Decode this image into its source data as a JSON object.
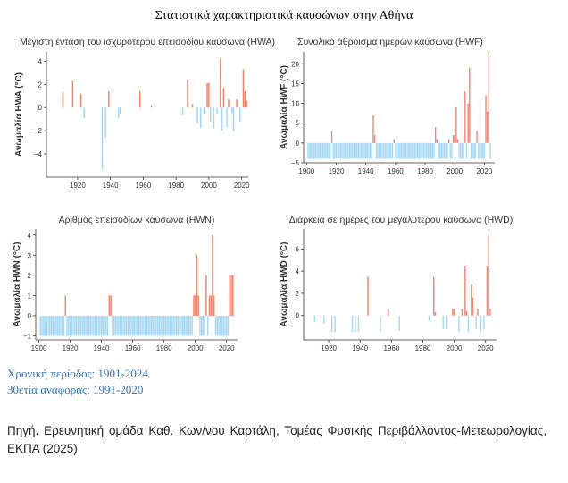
{
  "title": "Στατιστικά χαρακτηριστικά καυσώνων στην Αθήνα",
  "period_label": "Χρονική περίοδος: 1901-2024",
  "reference_label": "30ετία αναφοράς: 1991-2020",
  "source_label": "Πηγή. Ερευνητική ομάδα Καθ. Κων/νου Καρτάλη, Τομέας Φυσικής Περιβάλλοντος-Μετεωρολογίας, ΕΚΠΑ (2025)",
  "colors": {
    "positive": "#f2826c",
    "negative": "#a6d8f2"
  },
  "chart_data": [
    {
      "type": "bar",
      "id": "hwa",
      "title": "Μέγιστη ένταση του ισχυρότερου επεισοδίου καύσωνα (HWA)",
      "ylabel": "Ανωμαλία HWA (°C)",
      "xlim": [
        1901,
        2024
      ],
      "ylim": [
        -6,
        4.8
      ],
      "xticks": [
        1920,
        1940,
        1960,
        1980,
        2000,
        2020
      ],
      "yticks": [
        4,
        2,
        0,
        -2,
        -4
      ],
      "ytick_labels": [
        "4",
        "2",
        "0",
        "−2",
        "−4"
      ],
      "x": [
        1911,
        1917,
        1922,
        1924,
        1935,
        1937,
        1939,
        1945,
        1946,
        1958,
        1965,
        1984,
        1987,
        1990,
        1993,
        1995,
        1997,
        1999,
        2000,
        2001,
        2003,
        2005,
        2007,
        2008,
        2009,
        2011,
        2012,
        2014,
        2015,
        2017,
        2019,
        2021,
        2022,
        2023
      ],
      "values": [
        1.3,
        2.3,
        1.2,
        -0.9,
        -5.3,
        -2.6,
        1.4,
        -0.9,
        -0.6,
        1.4,
        0.2,
        -0.7,
        2.4,
        0.3,
        -1.4,
        -1.8,
        -0.6,
        2.1,
        2.1,
        -1.2,
        -1.8,
        -0.6,
        4.2,
        -2.0,
        1.7,
        -1.7,
        0.7,
        -0.5,
        -2.1,
        0.7,
        -1.2,
        3.3,
        1.4,
        0.6
      ]
    },
    {
      "type": "bar",
      "id": "hwf",
      "title": "Συνολικό άθροισμα ημερών καύσωνα (HWF)",
      "ylabel": "Ανωμαλία HWF (°C)",
      "xlim": [
        1898,
        2027
      ],
      "ylim": [
        -5,
        23
      ],
      "xticks": [
        1900,
        1920,
        1940,
        1960,
        1980,
        2000,
        2020
      ],
      "yticks": [
        20,
        15,
        10,
        5,
        0,
        -5
      ],
      "ytick_labels": [
        "20",
        "15",
        "10",
        "5",
        "0",
        "−5"
      ],
      "x": [
        1901,
        1902,
        1903,
        1904,
        1905,
        1906,
        1907,
        1908,
        1909,
        1910,
        1911,
        1912,
        1913,
        1914,
        1915,
        1916,
        1917,
        1918,
        1919,
        1920,
        1921,
        1922,
        1923,
        1924,
        1925,
        1926,
        1927,
        1928,
        1929,
        1930,
        1931,
        1932,
        1933,
        1934,
        1935,
        1936,
        1937,
        1938,
        1939,
        1940,
        1941,
        1942,
        1943,
        1944,
        1945,
        1946,
        1947,
        1948,
        1949,
        1950,
        1951,
        1952,
        1953,
        1954,
        1955,
        1956,
        1957,
        1958,
        1959,
        1960,
        1961,
        1962,
        1963,
        1964,
        1965,
        1966,
        1967,
        1968,
        1969,
        1970,
        1971,
        1972,
        1973,
        1974,
        1975,
        1976,
        1977,
        1978,
        1979,
        1980,
        1981,
        1982,
        1983,
        1984,
        1985,
        1986,
        1987,
        1988,
        1989,
        1990,
        1991,
        1992,
        1993,
        1994,
        1995,
        1996,
        1997,
        1998,
        1999,
        2000,
        2001,
        2002,
        2003,
        2004,
        2005,
        2006,
        2007,
        2008,
        2009,
        2010,
        2011,
        2012,
        2013,
        2014,
        2015,
        2016,
        2017,
        2018,
        2019,
        2020,
        2021,
        2022,
        2023,
        2024
      ],
      "values": [
        -4,
        -4,
        -4,
        -4,
        -4,
        -4,
        -4,
        -4,
        -4,
        -4,
        -4,
        -4,
        -4,
        -4,
        -4,
        -4,
        3,
        -4,
        -4,
        -4,
        -4,
        -4,
        -4,
        -4,
        -4,
        -4,
        -4,
        -4,
        -4,
        -4,
        -4,
        -4,
        -4,
        -4,
        -4,
        -4,
        -4,
        -4,
        -4,
        -4,
        -4,
        -4,
        -4,
        -4,
        7,
        2,
        -4,
        -4,
        -4,
        -4,
        -4,
        -4,
        -4,
        -4,
        -4,
        -4,
        -4,
        -4,
        1,
        -4,
        -4,
        -4,
        -4,
        -4,
        -4,
        -4,
        -4,
        -4,
        -4,
        -4,
        -4,
        -4,
        -4,
        -4,
        -4,
        -4,
        -4,
        -4,
        -4,
        -4,
        -4,
        -4,
        -4,
        -4,
        -4,
        -4,
        4,
        1,
        -4,
        -4,
        -4,
        -4,
        -4,
        -4,
        -4,
        1,
        -4,
        -4,
        2,
        2,
        9,
        1,
        -4,
        -4,
        -4,
        -4,
        13,
        -4,
        10,
        19,
        -4,
        -4,
        -4,
        -4,
        3,
        -4,
        -4,
        -4,
        -4,
        -4,
        12,
        8,
        23,
        -4
      ]
    },
    {
      "type": "bar",
      "id": "hwn",
      "title": "Αριθμός επεισοδίων καύσωνα (HWN)",
      "ylabel": "Ανωμαλία HWN (°C)",
      "xlim": [
        1898,
        2027
      ],
      "ylim": [
        -1.2,
        4.3
      ],
      "xticks": [
        1900,
        1920,
        1940,
        1960,
        1980,
        2000,
        2020
      ],
      "yticks": [
        4,
        3,
        2,
        1,
        0,
        -1
      ],
      "ytick_labels": [
        "4",
        "3",
        "2",
        "1",
        "0",
        "−1"
      ],
      "x": [
        1901,
        1902,
        1903,
        1904,
        1905,
        1906,
        1907,
        1908,
        1909,
        1910,
        1911,
        1912,
        1913,
        1914,
        1915,
        1916,
        1917,
        1918,
        1919,
        1920,
        1921,
        1922,
        1923,
        1924,
        1925,
        1926,
        1927,
        1928,
        1929,
        1930,
        1931,
        1932,
        1933,
        1934,
        1935,
        1936,
        1937,
        1938,
        1939,
        1940,
        1941,
        1942,
        1943,
        1944,
        1945,
        1946,
        1947,
        1948,
        1949,
        1950,
        1951,
        1952,
        1953,
        1954,
        1955,
        1956,
        1957,
        1958,
        1959,
        1960,
        1961,
        1962,
        1963,
        1964,
        1965,
        1966,
        1967,
        1968,
        1969,
        1970,
        1971,
        1972,
        1973,
        1974,
        1975,
        1976,
        1977,
        1978,
        1979,
        1980,
        1981,
        1982,
        1983,
        1984,
        1985,
        1986,
        1987,
        1988,
        1989,
        1990,
        1991,
        1992,
        1993,
        1994,
        1995,
        1996,
        1997,
        1998,
        1999,
        2000,
        2001,
        2002,
        2003,
        2004,
        2005,
        2006,
        2007,
        2008,
        2009,
        2010,
        2011,
        2012,
        2013,
        2014,
        2015,
        2016,
        2017,
        2018,
        2019,
        2020,
        2021,
        2022,
        2023,
        2024
      ],
      "values": [
        -1,
        -1,
        -1,
        -1,
        -1,
        -1,
        -1,
        -1,
        -1,
        -1,
        -1,
        -1,
        -1,
        -1,
        -1,
        -1,
        1,
        -1,
        -1,
        -1,
        -1,
        -1,
        -1,
        -1,
        -1,
        -1,
        -1,
        -1,
        -1,
        -1,
        -1,
        -1,
        -1,
        -1,
        -1,
        -1,
        -1,
        -1,
        -1,
        -1,
        -1,
        -1,
        -1,
        -1,
        1,
        1,
        -1,
        -1,
        -1,
        -1,
        -1,
        -1,
        -1,
        -1,
        -1,
        -1,
        -1,
        -1,
        -1,
        -1,
        -1,
        -1,
        -1,
        -1,
        -1,
        -1,
        -1,
        -1,
        -1,
        -1,
        -1,
        -1,
        -1,
        -1,
        -1,
        -1,
        -1,
        -1,
        -1,
        -1,
        -1,
        -1,
        -1,
        -1,
        -1,
        -1,
        -1,
        -1,
        -1,
        -1,
        -1,
        -1,
        -1,
        -1,
        -1,
        -1,
        -1,
        -1,
        1,
        1,
        3,
        1,
        -1,
        -1,
        -1,
        -1,
        2,
        -1,
        1,
        1,
        4,
        1,
        -1,
        -1,
        -1,
        -1,
        -1,
        -1,
        -1,
        -1,
        -1,
        2,
        2,
        2
      ]
    },
    {
      "type": "bar",
      "id": "hwd",
      "title": "Διάρκεια σε ημέρες του μεγαλύτερου καύσωνα (HWD)",
      "ylabel": "Ανωμαλία HWD (°C)",
      "xlim": [
        1904,
        2027
      ],
      "ylim": [
        -2.2,
        7.8
      ],
      "xticks": [
        1920,
        1940,
        1960,
        1980,
        2000,
        2020
      ],
      "yticks": [
        6,
        4,
        2,
        0
      ],
      "ytick_labels": [
        "6",
        "4",
        "2",
        "0"
      ],
      "x": [
        1911,
        1917,
        1922,
        1924,
        1935,
        1937,
        1939,
        1945,
        1953,
        1958,
        1965,
        1984,
        1987,
        1988,
        1993,
        1995,
        1999,
        2000,
        2003,
        2005,
        2007,
        2008,
        2009,
        2011,
        2012,
        2014,
        2015,
        2017,
        2019,
        2021,
        2022,
        2023
      ],
      "values": [
        -0.6,
        -0.7,
        -1.5,
        -1.5,
        -1.5,
        -1.5,
        -1.5,
        3.5,
        -1.5,
        0.6,
        -1.4,
        -0.5,
        3.5,
        0.3,
        -1.2,
        -1.2,
        0.6,
        0.6,
        -1.5,
        0.6,
        4.5,
        0.4,
        -1.5,
        2.8,
        1.6,
        -1.2,
        0.6,
        -1.5,
        -1.2,
        4.5,
        7.3,
        0.6
      ]
    }
  ]
}
